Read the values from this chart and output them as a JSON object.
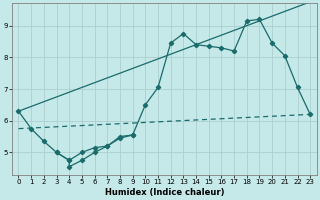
{
  "background_color": "#c5e8e8",
  "grid_color": "#aecece",
  "line_color": "#1a6b6b",
  "xlabel": "Humidex (Indice chaleur)",
  "xlim": [
    -0.5,
    23.5
  ],
  "ylim": [
    4.3,
    9.7
  ],
  "yticks": [
    5,
    6,
    7,
    8,
    9
  ],
  "xticks": [
    0,
    1,
    2,
    3,
    4,
    5,
    6,
    7,
    8,
    9,
    10,
    11,
    12,
    13,
    14,
    15,
    16,
    17,
    18,
    19,
    20,
    21,
    22,
    23
  ],
  "line1_x": [
    0,
    1,
    2,
    3,
    4,
    5,
    6,
    7,
    8,
    9,
    10,
    11,
    12,
    13,
    14,
    15,
    16,
    17,
    18,
    19,
    20,
    21,
    22,
    23
  ],
  "line1_y": [
    6.3,
    5.75,
    5.35,
    5.0,
    4.75,
    5.0,
    5.15,
    5.2,
    5.5,
    5.55,
    6.5,
    7.05,
    8.45,
    8.75,
    8.4,
    8.35,
    8.3,
    8.2,
    9.15,
    9.2,
    8.45,
    8.05,
    7.05,
    6.2
  ],
  "line2_x": [
    3,
    4,
    4,
    5,
    6,
    7,
    8,
    9
  ],
  "line2_y": [
    5.0,
    4.75,
    4.55,
    4.75,
    5.0,
    5.2,
    5.45,
    5.55
  ],
  "line3_x": [
    0,
    23
  ],
  "line3_y": [
    6.3,
    9.75
  ],
  "line4_x": [
    0,
    23
  ],
  "line4_y": [
    5.75,
    6.2
  ]
}
